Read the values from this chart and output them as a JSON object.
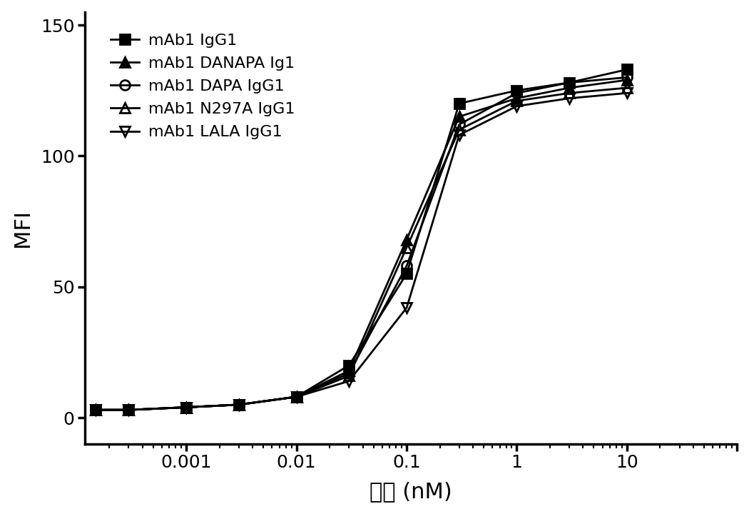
{
  "xlabel": "浓度 (nM)",
  "ylabel": "MFI",
  "ylim": [
    -10,
    155
  ],
  "xlim": [
    0.00012,
    100
  ],
  "yticks": [
    0,
    50,
    100,
    150
  ],
  "xticks": [
    0.001,
    0.01,
    0.1,
    1,
    10
  ],
  "xtick_labels": [
    "0.001",
    "0.01",
    "0.1",
    "1",
    "10"
  ],
  "background_color": "#ffffff",
  "series": [
    {
      "label": "mAb1 IgG1",
      "marker": "s",
      "fillstyle": "full",
      "x": [
        0.00015,
        0.0003,
        0.001,
        0.003,
        0.01,
        0.03,
        0.1,
        0.3,
        1,
        3,
        10
      ],
      "y": [
        3,
        3,
        4,
        5,
        8,
        20,
        55,
        120,
        125,
        128,
        133
      ]
    },
    {
      "label": "mAb1 DANAPA Ig1",
      "marker": "^",
      "fillstyle": "full",
      "x": [
        0.00015,
        0.0003,
        0.001,
        0.003,
        0.01,
        0.03,
        0.1,
        0.3,
        1,
        3,
        10
      ],
      "y": [
        3,
        3,
        4,
        5,
        8,
        18,
        68,
        115,
        122,
        126,
        129
      ]
    },
    {
      "label": "mAb1 DAPA IgG1",
      "marker": "o",
      "fillstyle": "none",
      "x": [
        0.00015,
        0.0003,
        0.001,
        0.003,
        0.01,
        0.03,
        0.1,
        0.3,
        1,
        3,
        10
      ],
      "y": [
        3,
        3,
        4,
        5,
        8,
        17,
        58,
        112,
        124,
        128,
        130
      ]
    },
    {
      "label": "mAb1 N297A IgG1",
      "marker": "^",
      "fillstyle": "none",
      "x": [
        0.00015,
        0.0003,
        0.001,
        0.003,
        0.01,
        0.03,
        0.1,
        0.3,
        1,
        3,
        10
      ],
      "y": [
        3,
        3,
        4,
        5,
        8,
        16,
        65,
        110,
        121,
        124,
        126
      ]
    },
    {
      "label": "mAb1 LALA IgG1",
      "marker": "v",
      "fillstyle": "none",
      "x": [
        0.00015,
        0.0003,
        0.001,
        0.003,
        0.01,
        0.03,
        0.1,
        0.3,
        1,
        3,
        10
      ],
      "y": [
        3,
        3,
        4,
        5,
        8,
        14,
        42,
        108,
        119,
        122,
        124
      ]
    }
  ]
}
